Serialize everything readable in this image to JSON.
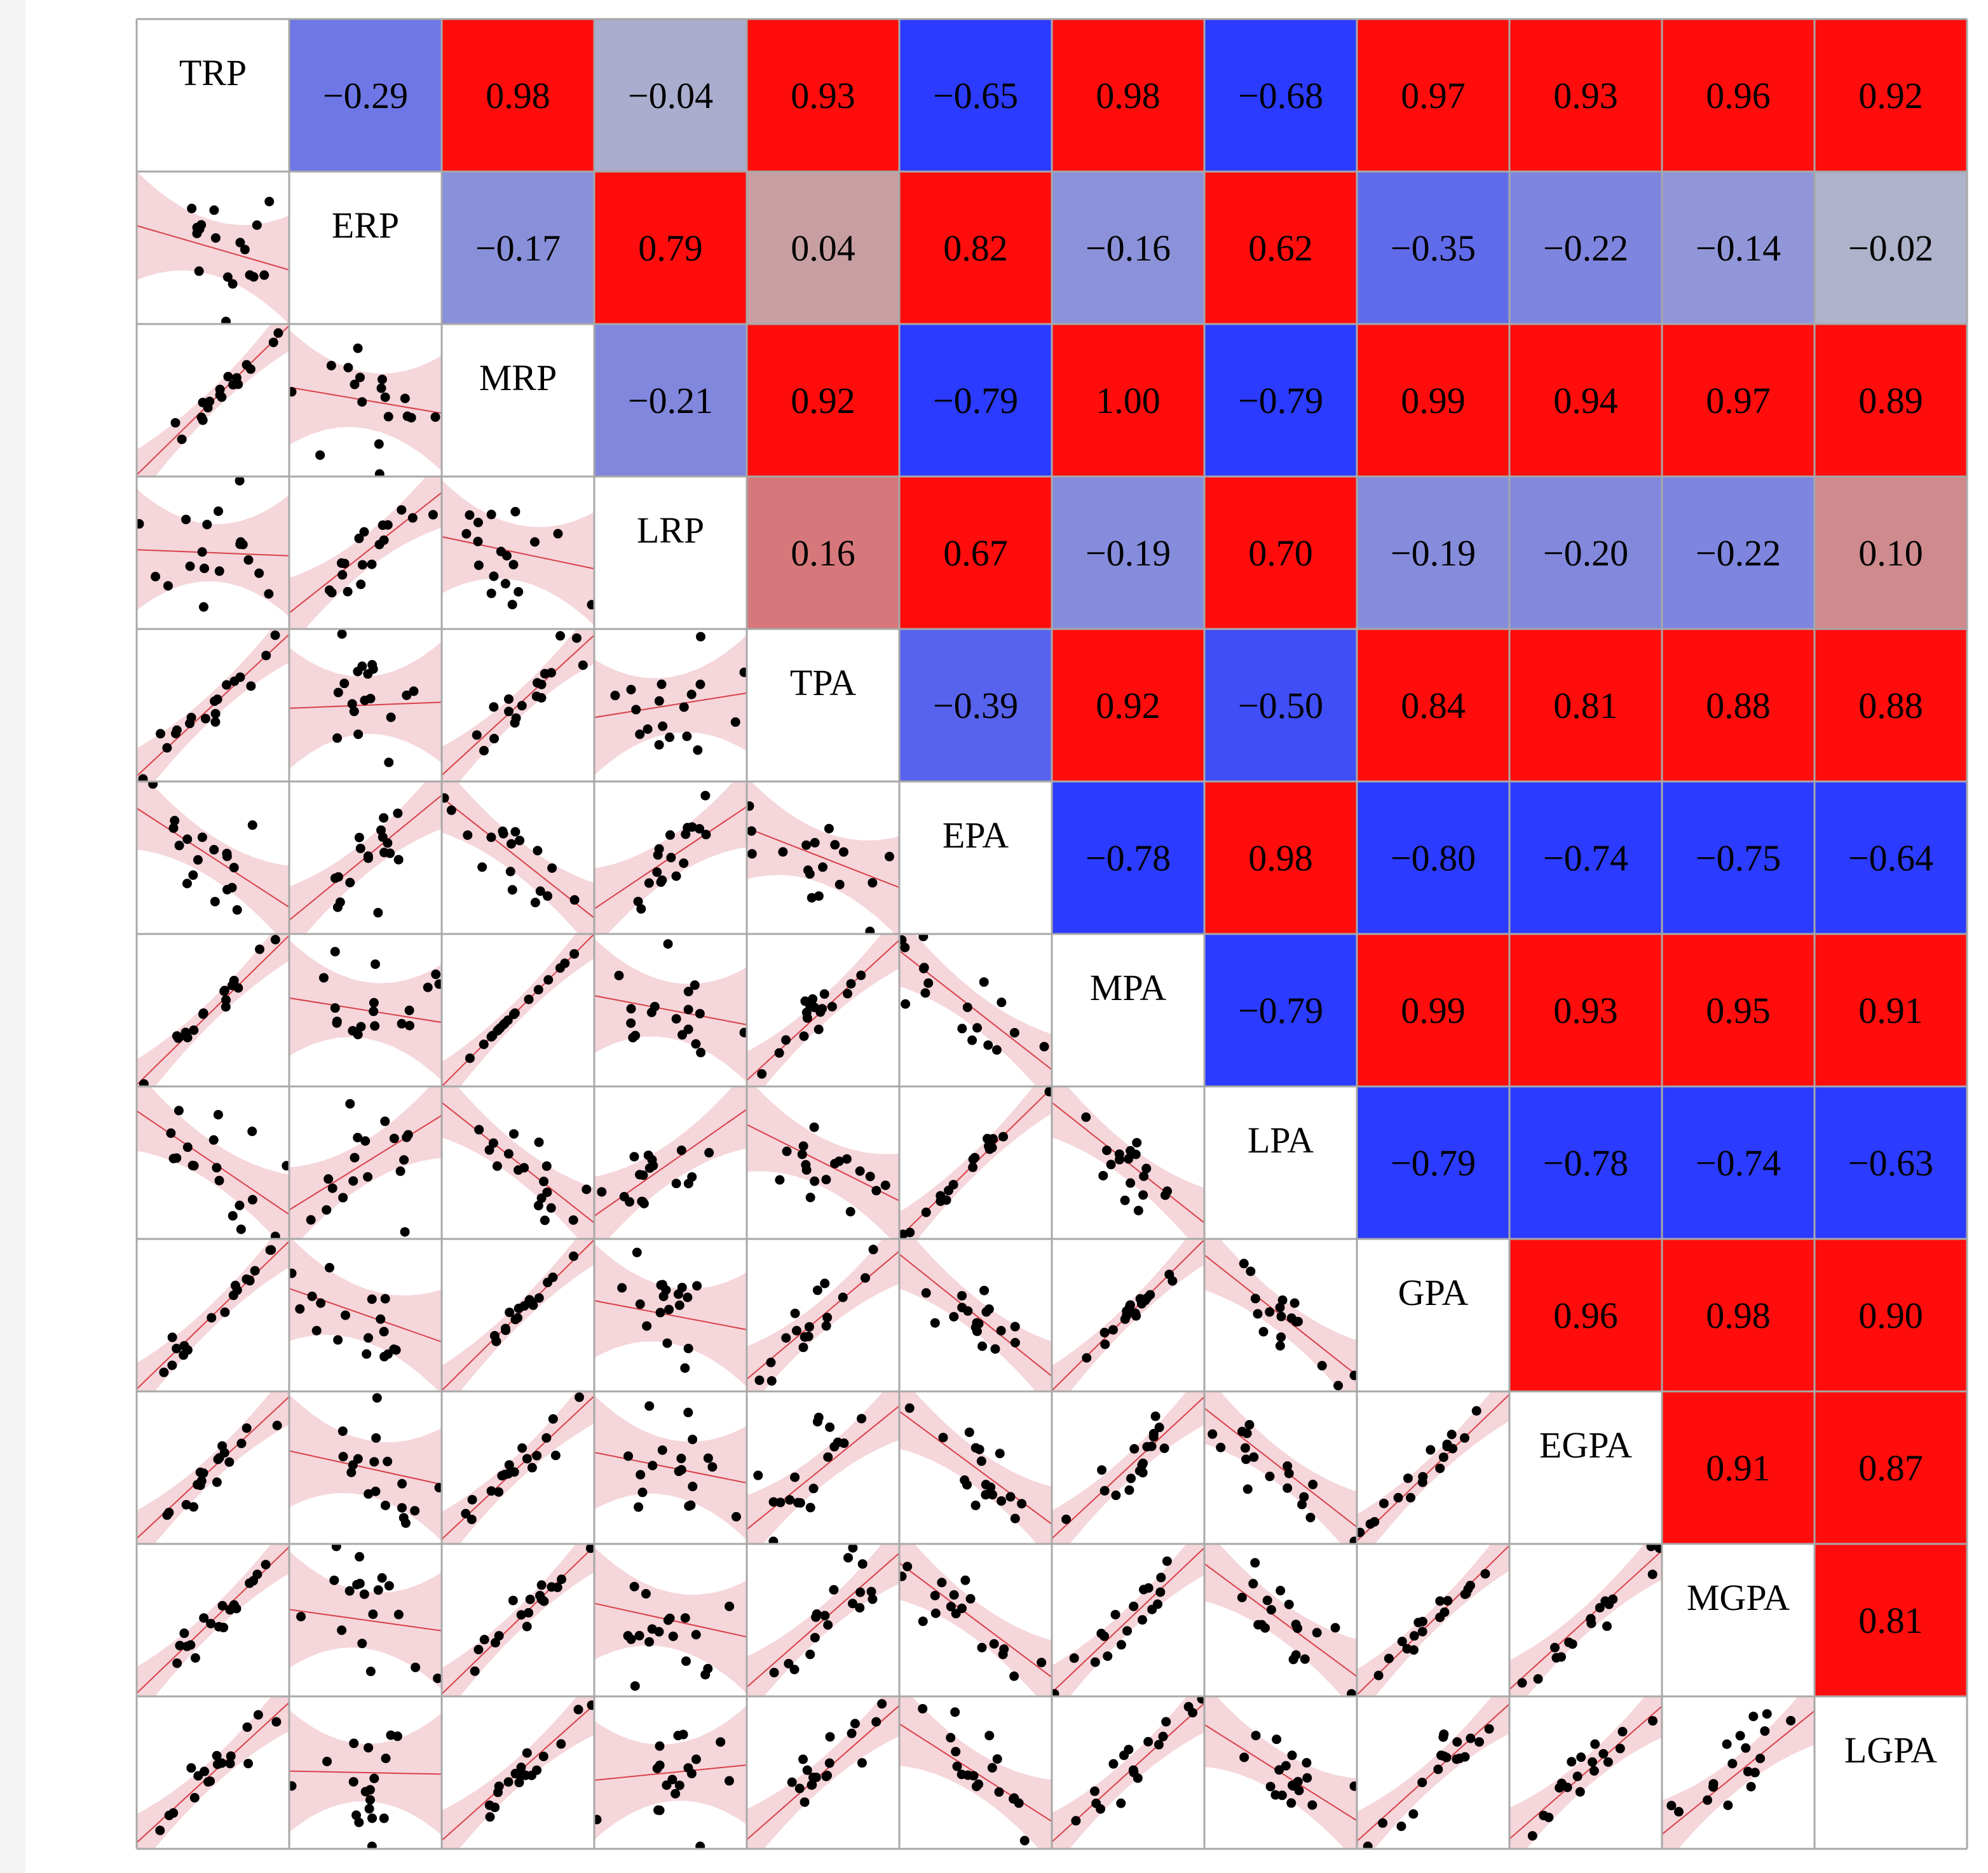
{
  "chart_data": {
    "type": "heatmap",
    "subtype": "correlation-pairs-matrix",
    "variables": [
      "TRP",
      "ERP",
      "MRP",
      "LRP",
      "TPA",
      "EPA",
      "MPA",
      "LPA",
      "GPA",
      "EGPA",
      "MGPA",
      "LGPA"
    ],
    "upper_triangle_correlations": [
      [
        "",
        "-0.29",
        "0.98",
        "-0.04",
        "0.93",
        "-0.65",
        "0.98",
        "-0.68",
        "0.97",
        "0.93",
        "0.96",
        "0.92"
      ],
      [
        "",
        "",
        "-0.17",
        "0.79",
        "0.04",
        "0.82",
        "-0.16",
        "0.62",
        "-0.35",
        "-0.22",
        "-0.14",
        "-0.02"
      ],
      [
        "",
        "",
        "",
        "-0.21",
        "0.92",
        "-0.79",
        "1.00",
        "-0.79",
        "0.99",
        "0.94",
        "0.97",
        "0.89"
      ],
      [
        "",
        "",
        "",
        "",
        "0.16",
        "0.67",
        "-0.19",
        "0.70",
        "-0.19",
        "-0.20",
        "-0.22",
        "0.10"
      ],
      [
        "",
        "",
        "",
        "",
        "",
        "-0.39",
        "0.92",
        "-0.50",
        "0.84",
        "0.81",
        "0.88",
        "0.88"
      ],
      [
        "",
        "",
        "",
        "",
        "",
        "",
        "-0.78",
        "0.98",
        "-0.80",
        "-0.74",
        "-0.75",
        "-0.64"
      ],
      [
        "",
        "",
        "",
        "",
        "",
        "",
        "",
        "-0.79",
        "0.99",
        "0.93",
        "0.95",
        "0.91"
      ],
      [
        "",
        "",
        "",
        "",
        "",
        "",
        "",
        "",
        "-0.79",
        "-0.78",
        "-0.74",
        "-0.63"
      ],
      [
        "",
        "",
        "",
        "",
        "",
        "",
        "",
        "",
        "",
        "0.96",
        "0.98",
        "0.90"
      ],
      [
        "",
        "",
        "",
        "",
        "",
        "",
        "",
        "",
        "",
        "",
        "0.91",
        "0.87"
      ],
      [
        "",
        "",
        "",
        "",
        "",
        "",
        "",
        "",
        "",
        "",
        "",
        "0.81"
      ],
      [
        "",
        "",
        "",
        "",
        "",
        "",
        "",
        "",
        "",
        "",
        "",
        ""
      ]
    ],
    "color_scale": {
      "negative": "#2b3bff",
      "zero": "#c0b2b6",
      "positive": "#ff0c0c",
      "neutral_gray": "#b6b8c8",
      "saturates_at": 0.6
    },
    "lower_triangle": {
      "panel_type": "scatter with linear fit and confidence band",
      "point_color": "#000000",
      "line_color": "#d8404a",
      "band_color": "#f4d2d6"
    },
    "grid": true,
    "legend": "none"
  }
}
